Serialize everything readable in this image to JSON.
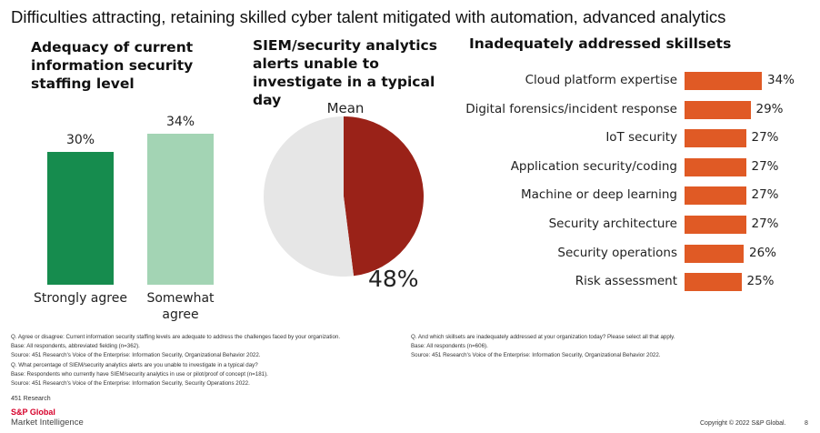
{
  "page": {
    "title": "Difficulties attracting, retaining skilled cyber talent mitigated with automation, advanced analytics"
  },
  "chart_data": [
    {
      "type": "bar",
      "title": "Adequacy of current information security staffing level",
      "categories": [
        "Strongly agree",
        "Somewhat agree"
      ],
      "values": [
        30,
        34
      ],
      "value_labels": [
        "30%",
        "34%"
      ],
      "colors": [
        "#168c4e",
        "#a3d4b4"
      ],
      "ylim": [
        0,
        40
      ]
    },
    {
      "type": "pie",
      "title": "SIEM/security analytics alerts unable to investigate in a typical day",
      "subtitle": "Mean",
      "values": [
        48,
        52
      ],
      "value_label": "48%",
      "colors": [
        "#9a2218",
        "#e6e6e6"
      ]
    },
    {
      "type": "bar",
      "orientation": "horizontal",
      "title": "Inadequately addressed skillsets",
      "categories": [
        "Cloud platform expertise",
        "Digital forensics/incident response",
        "IoT security",
        "Application security/coding",
        "Machine or deep learning",
        "Security architecture",
        "Security operations",
        "Risk assessment"
      ],
      "values": [
        34,
        29,
        27,
        27,
        27,
        27,
        26,
        25
      ],
      "value_labels": [
        "34%",
        "29%",
        "27%",
        "27%",
        "27%",
        "27%",
        "26%",
        "25%"
      ],
      "color": "#e05a25",
      "xlim": [
        0,
        40
      ]
    }
  ],
  "notes_left": [
    "Q. Agree or disagree: Current information security staffing levels are adequate to address the challenges faced by your organization.",
    "Base: All respondents, abbreviated fielding (n=362).",
    "Source: 451 Research's Voice of the Enterprise: Information Security, Organizational Behavior 2022.",
    "Q. What percentage of SIEM/security analytics alerts are you unable to investigate in a typical day?",
    "Base: Respondents who currently have SIEM/security analytics in use or pilot/proof of concept (n=181).",
    "Source: 451 Research's Voice of the Enterprise: Information Security, Security Operations 2022."
  ],
  "notes_right": [
    "Q. And which skillsets are inadequately addressed at your organization today? Please select all that apply.",
    "Base: All respondents (n=606).",
    "Source: 451 Research's Voice of the Enterprise: Information Security, Organizational Behavior 2022."
  ],
  "footer": {
    "brand_small": "451 Research",
    "brand_top": "S&P Global",
    "brand_bottom": "Market Intelligence",
    "copyright": "Copyright © 2022 S&P Global.",
    "page_number": "8"
  }
}
